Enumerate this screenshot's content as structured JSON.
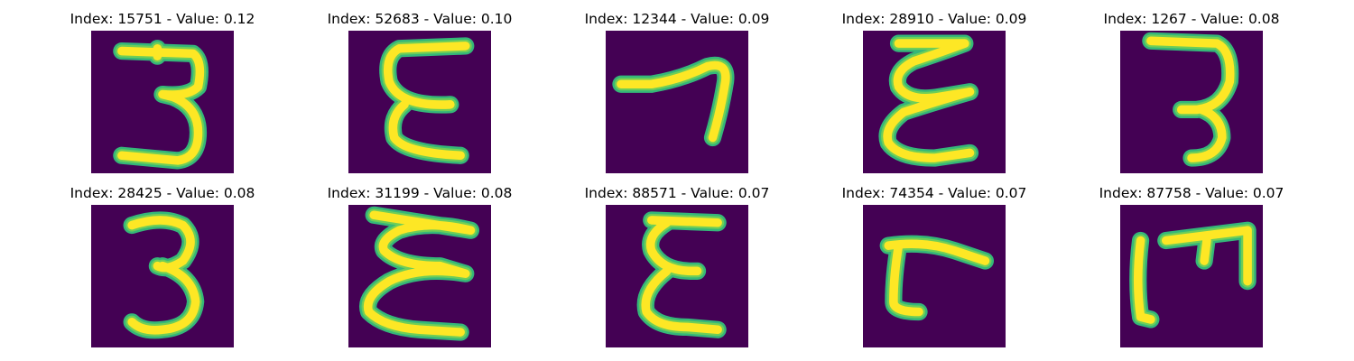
{
  "colors": {
    "background": "#440154",
    "stroke_edge": "#35b779",
    "stroke_mid": "#6ece58",
    "stroke_core": "#fde725",
    "colormap": "viridis"
  },
  "panels": [
    {
      "title": "Index: 15751 - Value: 0.12",
      "glyph": "digit-3"
    },
    {
      "title": "Index: 52683 - Value: 0.10",
      "glyph": "letter-E"
    },
    {
      "title": "Index: 12344 - Value: 0.09",
      "glyph": "digit-7"
    },
    {
      "title": "Index: 28910 - Value: 0.09",
      "glyph": "letter-E"
    },
    {
      "title": "Index: 1267 - Value: 0.08",
      "glyph": "digit-3"
    },
    {
      "title": "Index: 28425 - Value: 0.08",
      "glyph": "digit-3"
    },
    {
      "title": "Index: 31199 - Value: 0.08",
      "glyph": "letter-E"
    },
    {
      "title": "Index: 88571 - Value: 0.07",
      "glyph": "letter-E"
    },
    {
      "title": "Index: 74354 - Value: 0.07",
      "glyph": "digit-7"
    },
    {
      "title": "Index: 87758 - Value: 0.07",
      "glyph": "letter-M"
    }
  ]
}
